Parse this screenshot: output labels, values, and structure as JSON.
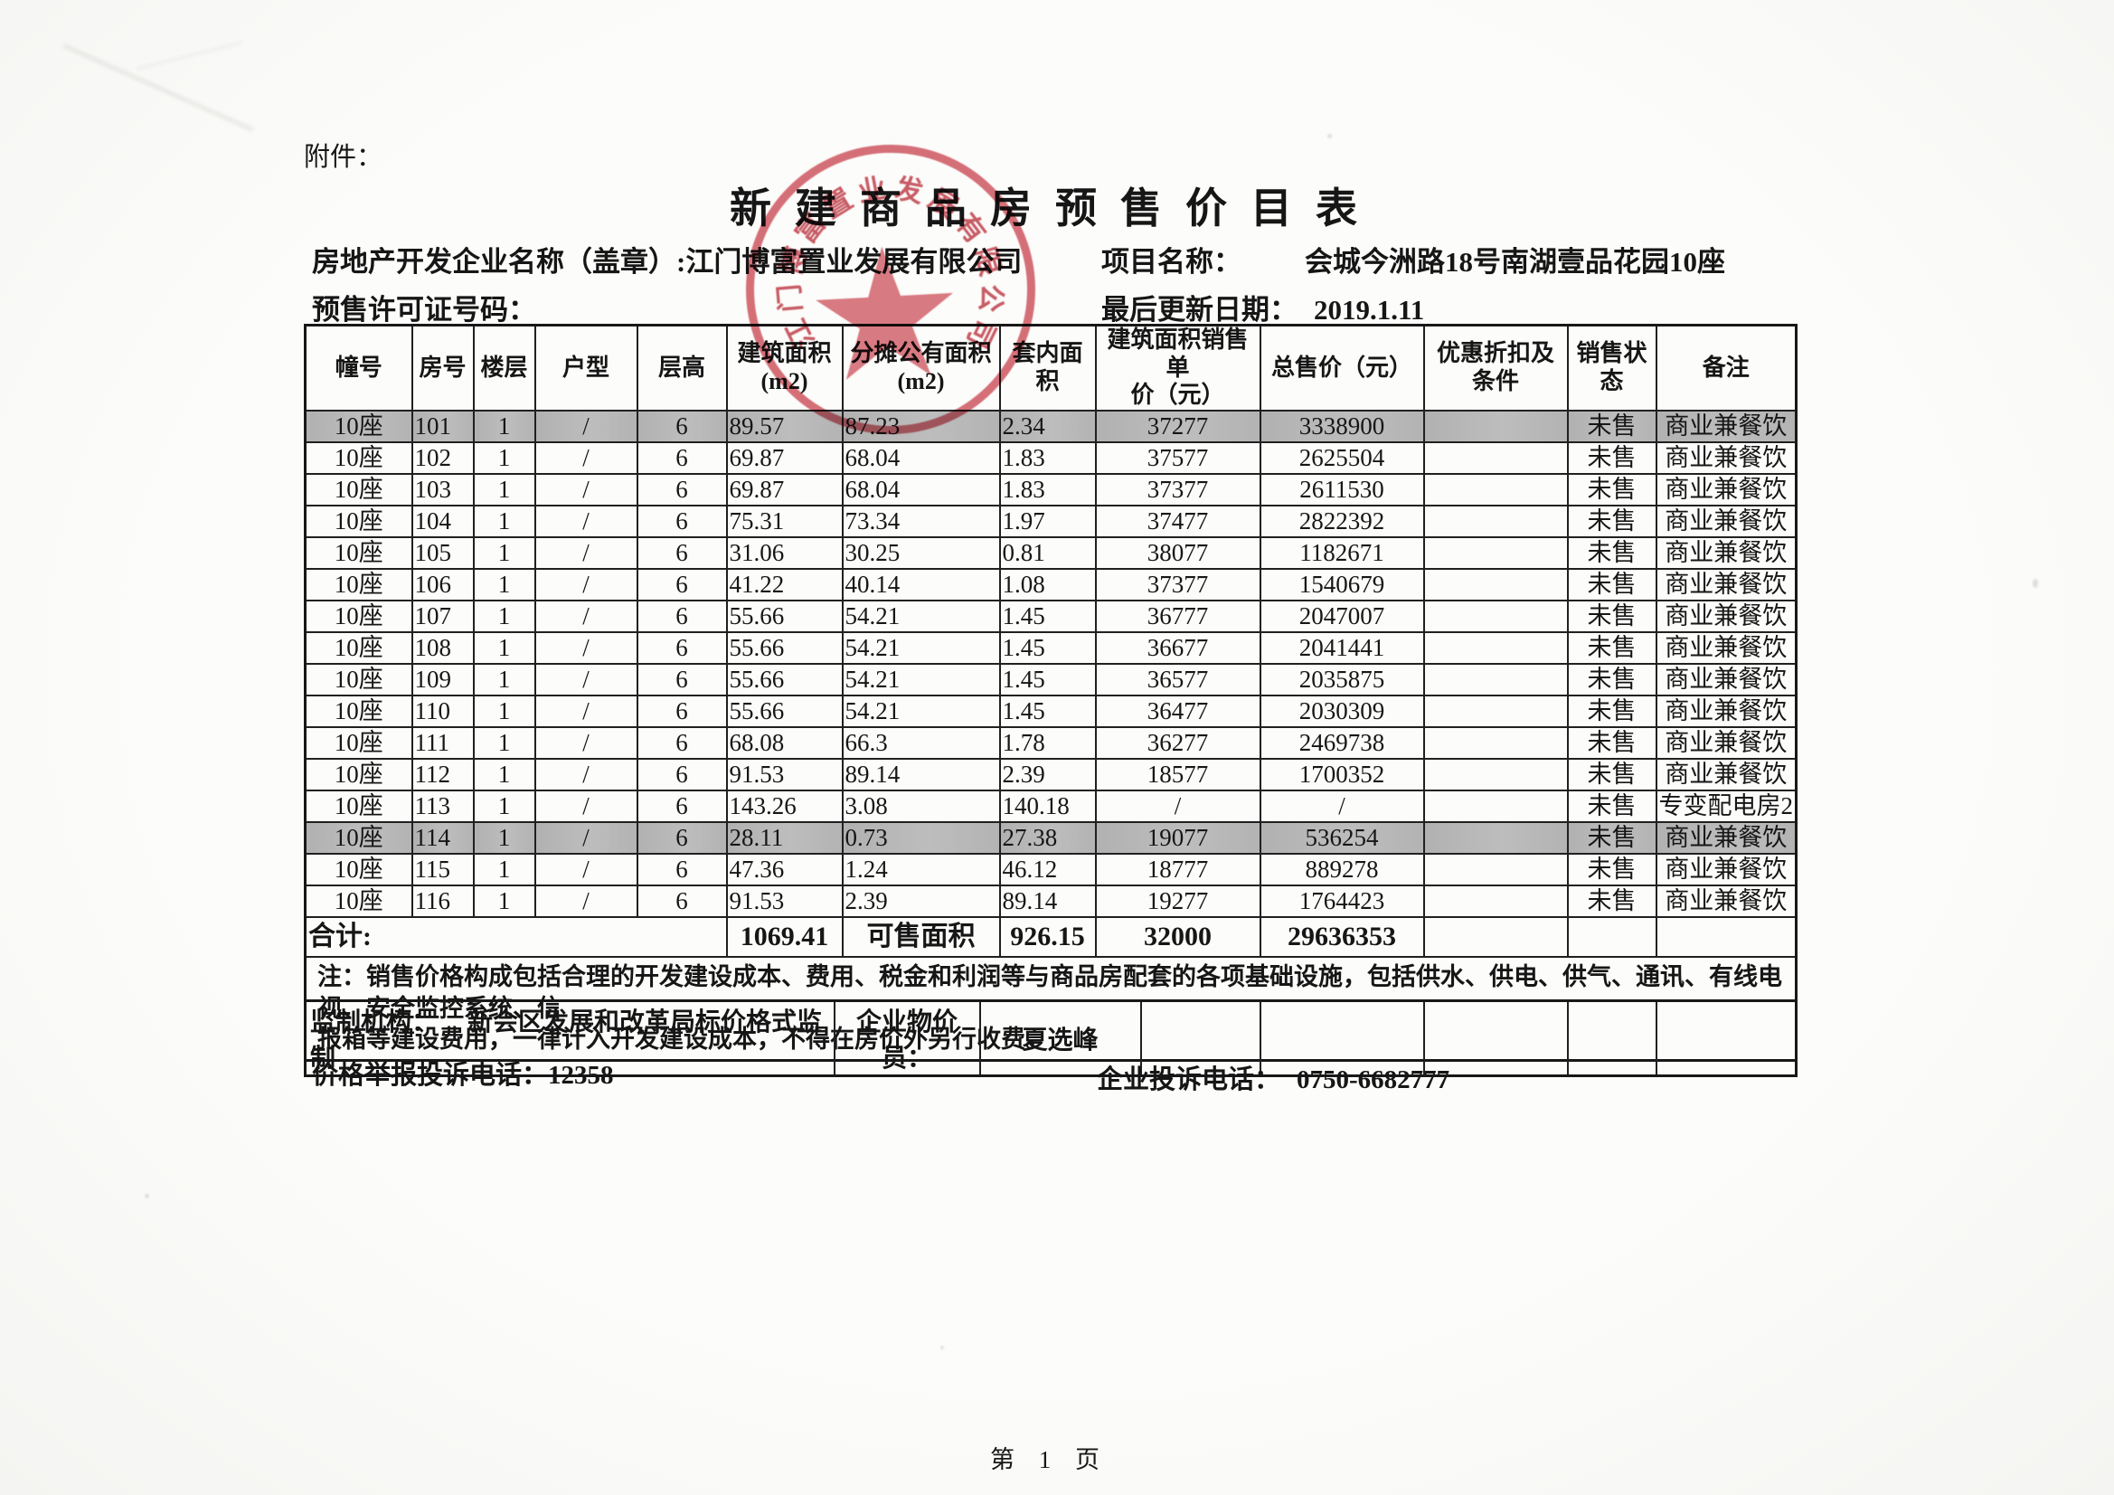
{
  "page": {
    "attachment_label": "附件：",
    "title": "新建商品房预售价目表",
    "developer_label": "房地产开发企业名称（盖章）:",
    "developer_name": "江门博富置业发展有限公司",
    "permit_label": "预售许可证号码：",
    "project_label": "项目名称：",
    "project_name": "会城今洲路18号南湖壹品花园10座",
    "updated_label": "最后更新日期：",
    "updated_value": "2019.1.11",
    "page_number": "第 1 页"
  },
  "stamp": {
    "company": "江门博富置业发展有限公司",
    "color": "#c52e3c"
  },
  "table": {
    "headers": [
      "幢号",
      "房号",
      "楼层",
      "户型",
      "层高",
      "建筑面积\n(m2)",
      "分摊公有面积\n(m2)",
      "套内面积",
      "建筑面积销售单\n价（元）",
      "总售价（元）",
      "优惠折扣及\n条件",
      "销售状\n态",
      "备注"
    ],
    "rows": [
      {
        "building": "10座",
        "room": "101",
        "floor": "1",
        "type": "/",
        "height": "6",
        "area": "89.57",
        "shared": "87.23",
        "inner": "2.34",
        "unit_price": "37277",
        "total_price": "3338900",
        "discount": "",
        "status": "未售",
        "remark": "商业兼餐饮",
        "highlight": true
      },
      {
        "building": "10座",
        "room": "102",
        "floor": "1",
        "type": "/",
        "height": "6",
        "area": "69.87",
        "shared": "68.04",
        "inner": "1.83",
        "unit_price": "37577",
        "total_price": "2625504",
        "discount": "",
        "status": "未售",
        "remark": "商业兼餐饮",
        "highlight": false
      },
      {
        "building": "10座",
        "room": "103",
        "floor": "1",
        "type": "/",
        "height": "6",
        "area": "69.87",
        "shared": "68.04",
        "inner": "1.83",
        "unit_price": "37377",
        "total_price": "2611530",
        "discount": "",
        "status": "未售",
        "remark": "商业兼餐饮",
        "highlight": false
      },
      {
        "building": "10座",
        "room": "104",
        "floor": "1",
        "type": "/",
        "height": "6",
        "area": "75.31",
        "shared": "73.34",
        "inner": "1.97",
        "unit_price": "37477",
        "total_price": "2822392",
        "discount": "",
        "status": "未售",
        "remark": "商业兼餐饮",
        "highlight": false
      },
      {
        "building": "10座",
        "room": "105",
        "floor": "1",
        "type": "/",
        "height": "6",
        "area": "31.06",
        "shared": "30.25",
        "inner": "0.81",
        "unit_price": "38077",
        "total_price": "1182671",
        "discount": "",
        "status": "未售",
        "remark": "商业兼餐饮",
        "highlight": false
      },
      {
        "building": "10座",
        "room": "106",
        "floor": "1",
        "type": "/",
        "height": "6",
        "area": "41.22",
        "shared": "40.14",
        "inner": "1.08",
        "unit_price": "37377",
        "total_price": "1540679",
        "discount": "",
        "status": "未售",
        "remark": "商业兼餐饮",
        "highlight": false
      },
      {
        "building": "10座",
        "room": "107",
        "floor": "1",
        "type": "/",
        "height": "6",
        "area": "55.66",
        "shared": "54.21",
        "inner": "1.45",
        "unit_price": "36777",
        "total_price": "2047007",
        "discount": "",
        "status": "未售",
        "remark": "商业兼餐饮",
        "highlight": false
      },
      {
        "building": "10座",
        "room": "108",
        "floor": "1",
        "type": "/",
        "height": "6",
        "area": "55.66",
        "shared": "54.21",
        "inner": "1.45",
        "unit_price": "36677",
        "total_price": "2041441",
        "discount": "",
        "status": "未售",
        "remark": "商业兼餐饮",
        "highlight": false
      },
      {
        "building": "10座",
        "room": "109",
        "floor": "1",
        "type": "/",
        "height": "6",
        "area": "55.66",
        "shared": "54.21",
        "inner": "1.45",
        "unit_price": "36577",
        "total_price": "2035875",
        "discount": "",
        "status": "未售",
        "remark": "商业兼餐饮",
        "highlight": false
      },
      {
        "building": "10座",
        "room": "110",
        "floor": "1",
        "type": "/",
        "height": "6",
        "area": "55.66",
        "shared": "54.21",
        "inner": "1.45",
        "unit_price": "36477",
        "total_price": "2030309",
        "discount": "",
        "status": "未售",
        "remark": "商业兼餐饮",
        "highlight": false
      },
      {
        "building": "10座",
        "room": "111",
        "floor": "1",
        "type": "/",
        "height": "6",
        "area": "68.08",
        "shared": "66.3",
        "inner": "1.78",
        "unit_price": "36277",
        "total_price": "2469738",
        "discount": "",
        "status": "未售",
        "remark": "商业兼餐饮",
        "highlight": false
      },
      {
        "building": "10座",
        "room": "112",
        "floor": "1",
        "type": "/",
        "height": "6",
        "area": "91.53",
        "shared": "89.14",
        "inner": "2.39",
        "unit_price": "18577",
        "total_price": "1700352",
        "discount": "",
        "status": "未售",
        "remark": "商业兼餐饮",
        "highlight": false
      },
      {
        "building": "10座",
        "room": "113",
        "floor": "1",
        "type": "/",
        "height": "6",
        "area": "143.26",
        "shared": "3.08",
        "inner": "140.18",
        "unit_price": "/",
        "total_price": "/",
        "discount": "",
        "status": "未售",
        "remark": "专变配电房2",
        "highlight": false
      },
      {
        "building": "10座",
        "room": "114",
        "floor": "1",
        "type": "/",
        "height": "6",
        "area": "28.11",
        "shared": "0.73",
        "inner": "27.38",
        "unit_price": "19077",
        "total_price": "536254",
        "discount": "",
        "status": "未售",
        "remark": "商业兼餐饮",
        "highlight": true
      },
      {
        "building": "10座",
        "room": "115",
        "floor": "1",
        "type": "/",
        "height": "6",
        "area": "47.36",
        "shared": "1.24",
        "inner": "46.12",
        "unit_price": "18777",
        "total_price": "889278",
        "discount": "",
        "status": "未售",
        "remark": "商业兼餐饮",
        "highlight": false
      },
      {
        "building": "10座",
        "room": "116",
        "floor": "1",
        "type": "/",
        "height": "6",
        "area": "91.53",
        "shared": "2.39",
        "inner": "89.14",
        "unit_price": "19277",
        "total_price": "1764423",
        "discount": "",
        "status": "未售",
        "remark": "商业兼餐饮",
        "highlight": false
      }
    ],
    "total_row": {
      "label": "合计:",
      "area_total": "1069.41",
      "saleable_label": "可售面积",
      "inner_total": "926.15",
      "unit_price_total": "32000",
      "total_price_total": "29636353"
    },
    "note_line1": "注：销售价格构成包括合理的开发建设成本、费用、税金和利润等与商品房配套的各项基础设施，包括供水、供电、供气、通讯、有线电视、安全监控系统、信",
    "note_line2": "报箱等建设费用，一律计入开发建设成本，不得在房价外另行收费。",
    "supervision": {
      "agency_label": "监制机构：",
      "agency_value": "新会区发展和改革局标价格式监制",
      "officer_label": "企业物价员：",
      "officer_value": "夏选峰"
    }
  },
  "footer": {
    "report_phone_label": "价格举报投诉电话：",
    "report_phone": "12358",
    "company_phone_label": "企业投诉电话：",
    "company_phone": "0750-6682777"
  }
}
